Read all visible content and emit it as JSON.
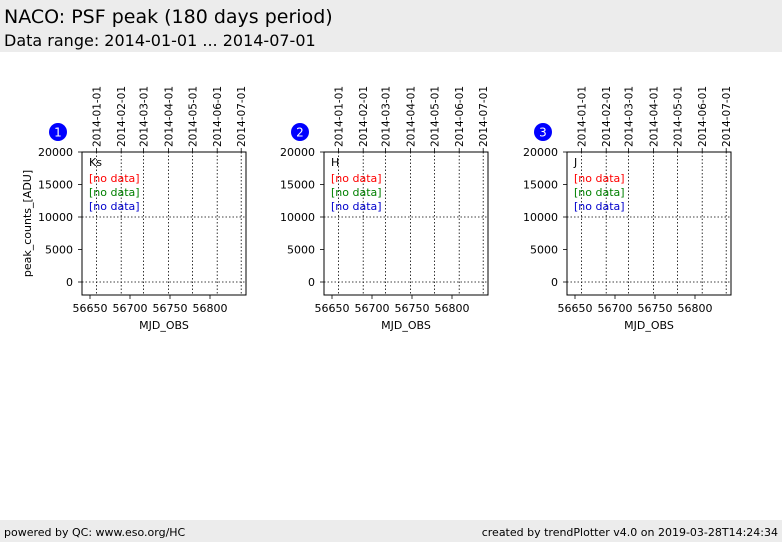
{
  "header": {
    "title": "NACO: PSF peak (180 days period)",
    "subtitle": "Data range: 2014-01-01 ... 2014-07-01"
  },
  "footer": {
    "left": "powered by QC: www.eso.org/HC",
    "right": "created by trendPlotter v4.0 on 2019-03-28T14:24:34"
  },
  "chart_data": [
    {
      "type": "scatter",
      "panel_number": "1",
      "filter_label": "Ks",
      "xlabel": "MJD_OBS",
      "ylabel": "peak_counts_[ADU]",
      "xlim": [
        56640,
        56845
      ],
      "ylim": [
        -2000,
        20000
      ],
      "x_ticks": [
        56650,
        56700,
        56750,
        56800
      ],
      "y_ticks": [
        0,
        5000,
        10000,
        15000,
        20000
      ],
      "date_ticks": [
        {
          "mjd": 56658,
          "label": "2014-01-01"
        },
        {
          "mjd": 56689,
          "label": "2014-02-01"
        },
        {
          "mjd": 56717,
          "label": "2014-03-01"
        },
        {
          "mjd": 56748,
          "label": "2014-04-01"
        },
        {
          "mjd": 56778,
          "label": "2014-05-01"
        },
        {
          "mjd": 56809,
          "label": "2014-06-01"
        },
        {
          "mjd": 56839,
          "label": "2014-07-01"
        }
      ],
      "reference_lines": [
        0,
        10000
      ],
      "series": [
        {
          "name": "[no data]",
          "color": "#ff0000",
          "values": []
        },
        {
          "name": "[no data]",
          "color": "#008000",
          "values": []
        },
        {
          "name": "[no data]",
          "color": "#0000cc",
          "values": []
        }
      ]
    },
    {
      "type": "scatter",
      "panel_number": "2",
      "filter_label": "H",
      "xlabel": "MJD_OBS",
      "ylabel": "",
      "xlim": [
        56640,
        56845
      ],
      "ylim": [
        -2000,
        20000
      ],
      "x_ticks": [
        56650,
        56700,
        56750,
        56800
      ],
      "y_ticks": [
        0,
        5000,
        10000,
        15000,
        20000
      ],
      "date_ticks": [
        {
          "mjd": 56658,
          "label": "2014-01-01"
        },
        {
          "mjd": 56689,
          "label": "2014-02-01"
        },
        {
          "mjd": 56717,
          "label": "2014-03-01"
        },
        {
          "mjd": 56748,
          "label": "2014-04-01"
        },
        {
          "mjd": 56778,
          "label": "2014-05-01"
        },
        {
          "mjd": 56809,
          "label": "2014-06-01"
        },
        {
          "mjd": 56839,
          "label": "2014-07-01"
        }
      ],
      "reference_lines": [
        0,
        10000
      ],
      "series": [
        {
          "name": "[no data]",
          "color": "#ff0000",
          "values": []
        },
        {
          "name": "[no data]",
          "color": "#008000",
          "values": []
        },
        {
          "name": "[no data]",
          "color": "#0000cc",
          "values": []
        }
      ]
    },
    {
      "type": "scatter",
      "panel_number": "3",
      "filter_label": "J",
      "xlabel": "MJD_OBS",
      "ylabel": "",
      "xlim": [
        56640,
        56845
      ],
      "ylim": [
        -2000,
        20000
      ],
      "x_ticks": [
        56650,
        56700,
        56750,
        56800
      ],
      "y_ticks": [
        0,
        5000,
        10000,
        15000,
        20000
      ],
      "date_ticks": [
        {
          "mjd": 56658,
          "label": "2014-01-01"
        },
        {
          "mjd": 56689,
          "label": "2014-02-01"
        },
        {
          "mjd": 56717,
          "label": "2014-03-01"
        },
        {
          "mjd": 56748,
          "label": "2014-04-01"
        },
        {
          "mjd": 56778,
          "label": "2014-05-01"
        },
        {
          "mjd": 56809,
          "label": "2014-06-01"
        },
        {
          "mjd": 56839,
          "label": "2014-07-01"
        }
      ],
      "reference_lines": [
        0,
        10000
      ],
      "series": [
        {
          "name": "[no data]",
          "color": "#ff0000",
          "values": []
        },
        {
          "name": "[no data]",
          "color": "#008000",
          "values": []
        },
        {
          "name": "[no data]",
          "color": "#0000cc",
          "values": []
        }
      ]
    }
  ],
  "colors": {
    "panel_badge": "#0000ff",
    "header_background": "#ececec"
  }
}
